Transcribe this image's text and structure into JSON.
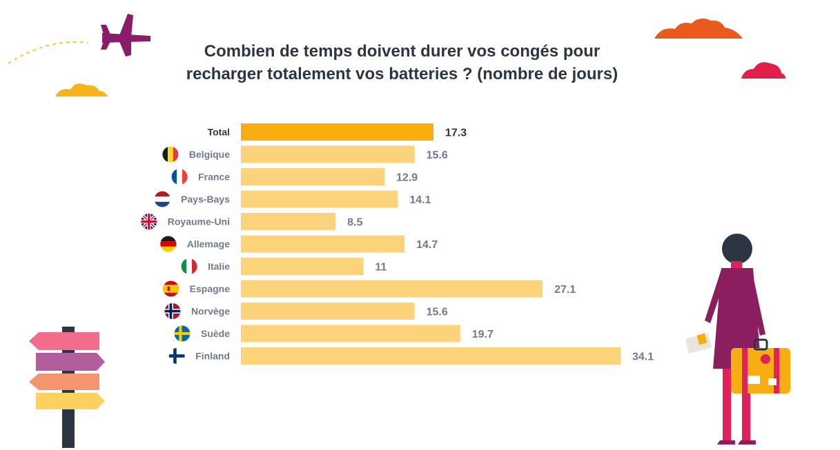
{
  "title_lines": [
    "Combien de temps doivent durer vos congés pour",
    "recharger totalement vos batteries ? (nombre de jours)"
  ],
  "colors": {
    "highlight_bar": "#f7ae12",
    "bar": "#fcd37a",
    "value_text": "#6f7a8c",
    "highlight_text": "#2d3542",
    "label_text": "#6f7a8c"
  },
  "chart_data": {
    "type": "bar",
    "orientation": "horizontal",
    "title": "Combien de temps doivent durer vos congés pour recharger totalement vos batteries ? (nombre de jours)",
    "xlabel": "",
    "ylabel": "",
    "grid": false,
    "legend": "none",
    "xlim": [
      0,
      34.1
    ],
    "categories": [
      "Total",
      "Belgique",
      "France",
      "Pays-Bays",
      "Royaume-Uni",
      "Allemage",
      "Italie",
      "Espagne",
      "Norvège",
      "Suède",
      "Finland"
    ],
    "values": [
      17.3,
      15.6,
      12.9,
      14.1,
      8.5,
      14.7,
      11,
      27.1,
      15.6,
      19.7,
      34.1
    ],
    "value_labels": [
      "17.3",
      "15.6",
      "12.9",
      "14.1",
      "8.5",
      "14.7",
      "11",
      "27.1",
      "15.6",
      "19.7",
      "34.1"
    ],
    "highlight": "Total",
    "flags": [
      "",
      "belgium-flag-icon",
      "france-flag-icon",
      "netherlands-flag-icon",
      "uk-flag-icon",
      "germany-flag-icon",
      "italy-flag-icon",
      "spain-flag-icon",
      "norway-flag-icon",
      "sweden-flag-icon",
      "finland-flag-icon"
    ]
  },
  "decorations": [
    "airplane-icon",
    "cloud-icon",
    "signpost-icon",
    "traveler-with-suitcase-illustration"
  ]
}
